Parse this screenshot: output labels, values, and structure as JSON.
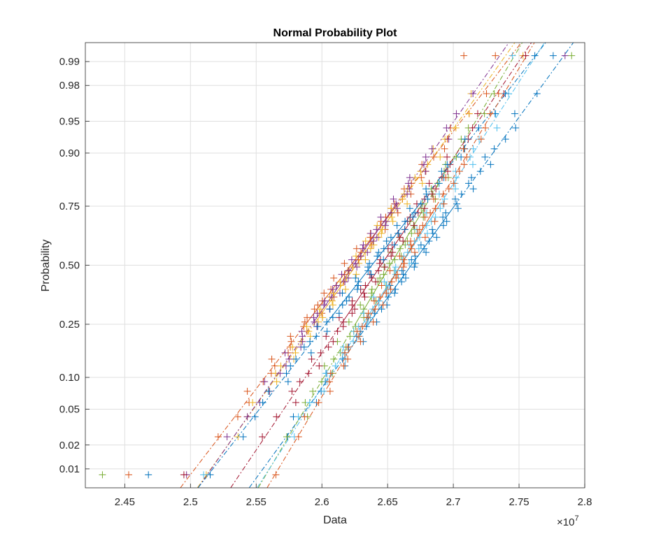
{
  "chart_data": {
    "type": "scatter",
    "title": "Normal Probability Plot",
    "xlabel": "Data",
    "ylabel": "Probability",
    "x_exponent_label": "×10",
    "x_exponent_power": "7",
    "xlim": [
      2.42,
      2.8
    ],
    "x_ticks": [
      2.45,
      2.5,
      2.55,
      2.6,
      2.65,
      2.7,
      2.75,
      2.8
    ],
    "x_tick_labels": [
      "2.45",
      "2.5",
      "2.55",
      "2.6",
      "2.65",
      "2.7",
      "2.75",
      "2.8"
    ],
    "y_probability_range": [
      0.0055,
      0.9945
    ],
    "y_ticks": [
      0.01,
      0.02,
      0.05,
      0.1,
      0.25,
      0.5,
      0.75,
      0.9,
      0.95,
      0.98,
      0.99
    ],
    "y_tick_labels": [
      "0.01",
      "0.02",
      "0.05",
      "0.10",
      "0.25",
      "0.50",
      "0.75",
      "0.90",
      "0.95",
      "0.98",
      "0.99"
    ],
    "grid": true,
    "marker": "+",
    "sample_size": 60,
    "series": [
      {
        "color": "#0072BD",
        "mean": 2.668,
        "std": 0.0485,
        "min": 2.468,
        "max": 2.776
      },
      {
        "color": "#D95319",
        "mean": 2.622,
        "std": 0.051,
        "min": 2.453,
        "max": 2.732
      },
      {
        "color": "#EDB120",
        "mean": 2.626,
        "std": 0.0475,
        "min": 2.512,
        "max": 2.753
      },
      {
        "color": "#7E2F8E",
        "mean": 2.624,
        "std": 0.0465,
        "min": 2.497,
        "max": 2.785
      },
      {
        "color": "#77AC30",
        "mean": 2.652,
        "std": 0.0395,
        "min": 2.433,
        "max": 2.79
      },
      {
        "color": "#4DBEEE",
        "mean": 2.66,
        "std": 0.043,
        "min": 2.51,
        "max": 2.745
      },
      {
        "color": "#A2142F",
        "mean": 2.645,
        "std": 0.045,
        "min": 2.495,
        "max": 2.755
      },
      {
        "color": "#0072BD",
        "mean": 2.638,
        "std": 0.052,
        "min": 2.515,
        "max": 2.762
      },
      {
        "color": "#D95319",
        "mean": 2.66,
        "std": 0.04,
        "min": 2.565,
        "max": 2.708
      }
    ]
  }
}
